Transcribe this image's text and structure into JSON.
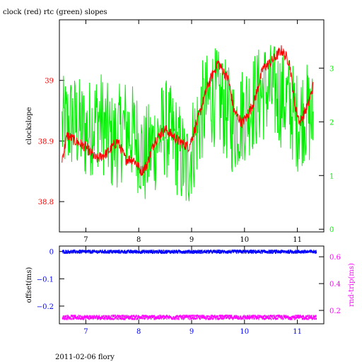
{
  "chart_data": [
    {
      "type": "line",
      "title": "clock (red) rtc (green) slopes",
      "xlabel": "",
      "ylabel": "clockslope",
      "y2label": "",
      "xlim": [
        6.5,
        11.5
      ],
      "ylim": [
        38.75,
        39.1
      ],
      "y2lim": [
        -0.05,
        3.9
      ],
      "xticks": [
        "7",
        "8",
        "9",
        "10",
        "11"
      ],
      "yticks": [
        "38.8",
        "38.9",
        "39"
      ],
      "y2ticks": [
        "0",
        "1",
        "2",
        "3"
      ],
      "colors": {
        "clock": "#ff0000",
        "rtc": "#00ee00",
        "axis": "#000000",
        "left_ticks": "#ff0000",
        "right_ticks": "#00ee00"
      },
      "series": [
        {
          "name": "clock",
          "axis": "left",
          "x": [
            6.55,
            6.65,
            6.8,
            7.0,
            7.2,
            7.4,
            7.6,
            7.75,
            7.9,
            8.05,
            8.15,
            8.3,
            8.5,
            8.75,
            8.95,
            9.1,
            9.3,
            9.5,
            9.7,
            9.8,
            9.95,
            10.05,
            10.2,
            10.35,
            10.5,
            10.7,
            10.85,
            10.95,
            11.05,
            11.2,
            11.3
          ],
          "values": [
            38.87,
            38.91,
            38.9,
            38.89,
            38.87,
            38.88,
            38.9,
            38.87,
            38.87,
            38.85,
            38.86,
            38.9,
            38.92,
            38.9,
            38.89,
            38.93,
            38.99,
            39.03,
            39.0,
            38.95,
            38.93,
            38.94,
            38.97,
            39.02,
            39.03,
            39.05,
            39.03,
            38.96,
            38.93,
            38.96,
            38.99
          ]
        },
        {
          "name": "rtc",
          "axis": "right",
          "x": [
            6.55,
            6.75,
            7.0,
            7.25,
            7.5,
            7.75,
            7.95,
            8.1,
            8.3,
            8.5,
            8.7,
            8.9,
            9.0,
            9.2,
            9.4,
            9.6,
            9.8,
            10.0,
            10.2,
            10.4,
            10.6,
            10.8,
            11.0,
            11.15,
            11.3
          ],
          "values": [
            1.9,
            2.0,
            1.8,
            2.1,
            1.6,
            1.9,
            1.7,
            1.3,
            1.6,
            1.9,
            1.6,
            1.1,
            1.5,
            2.2,
            2.5,
            2.3,
            1.9,
            2.2,
            2.4,
            2.6,
            2.5,
            2.4,
            2.0,
            2.2,
            2.0
          ]
        }
      ]
    },
    {
      "type": "scatter",
      "title": "",
      "xlabel": "",
      "ylabel": "offset(ms)",
      "y2label": "rnd-trip(ms)",
      "xlim": [
        6.5,
        11.5
      ],
      "ylim": [
        -0.265,
        0.02
      ],
      "y2lim": [
        0.1,
        0.68
      ],
      "xticks": [
        "7",
        "8",
        "9",
        "10",
        "11"
      ],
      "yticks": [
        "0",
        "−0.1",
        "−0.2"
      ],
      "y2ticks": [
        "0.6",
        "0.4",
        "0.2"
      ],
      "colors": {
        "offset": "#0000ff",
        "rndtrip": "#ff00ff",
        "axis": "#000000",
        "left_ticks": "#0000ff",
        "right_ticks": "#ff00ff"
      },
      "series": [
        {
          "name": "offset",
          "axis": "left",
          "x": [
            6.55,
            11.35
          ],
          "values": [
            0.0,
            0.0
          ]
        },
        {
          "name": "rnd-trip",
          "axis": "right",
          "x": [
            6.55,
            11.35
          ],
          "values": [
            0.15,
            0.15
          ]
        }
      ]
    }
  ],
  "footer": "2011-02-06 flory"
}
